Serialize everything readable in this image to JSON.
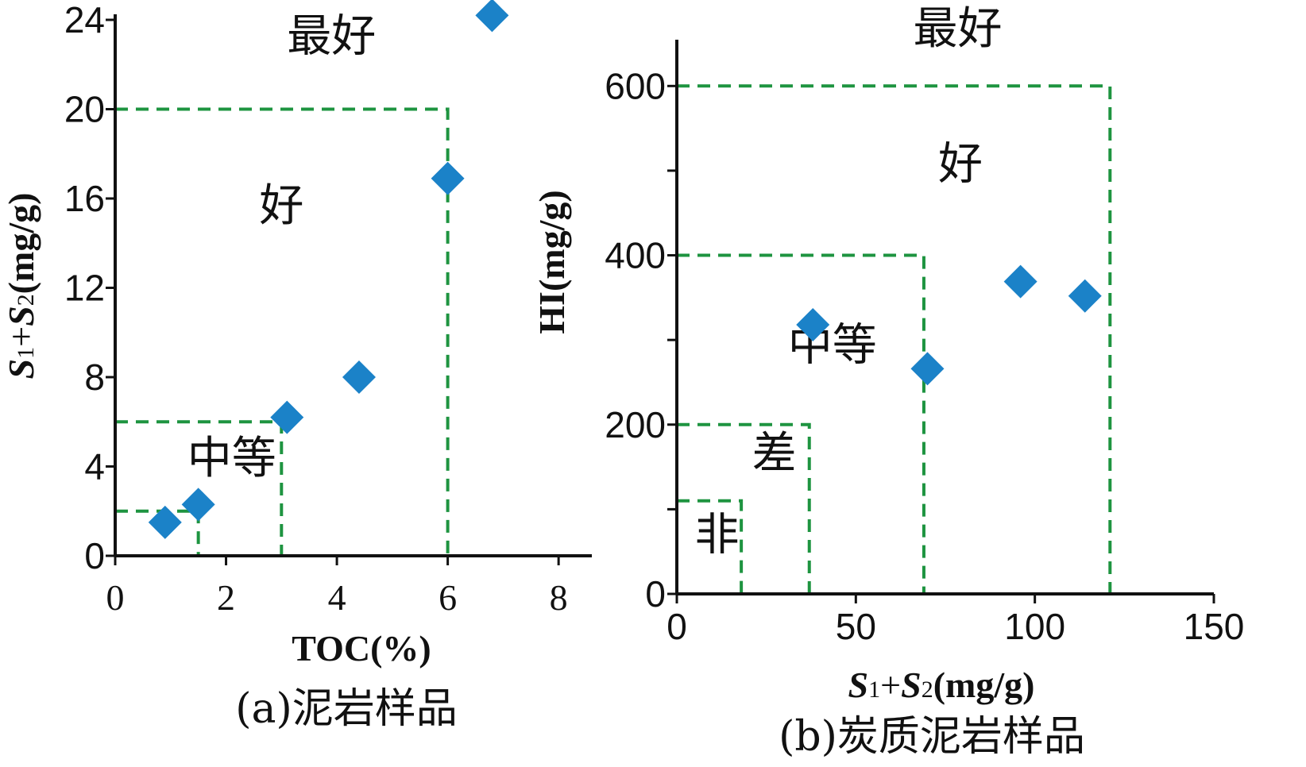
{
  "chart_data": [
    {
      "type": "scatter",
      "panel": "a",
      "caption": "(a)泥岩样品",
      "xlabel": "TOC(%)",
      "ylabel": {
        "s1": "S",
        "sub1": "1",
        "plus": "+",
        "s2": "S",
        "sub2": "2",
        "unit": "(mg/g)"
      },
      "xlim": [
        0,
        8.6
      ],
      "ylim": [
        0,
        24
      ],
      "x_ticks": [
        0,
        2,
        4,
        6,
        8
      ],
      "y_ticks": [
        0,
        4,
        8,
        12,
        16,
        20,
        24
      ],
      "grid": false,
      "points": [
        {
          "x": 0.9,
          "y": 1.5
        },
        {
          "x": 1.5,
          "y": 2.3
        },
        {
          "x": 3.1,
          "y": 6.2
        },
        {
          "x": 4.4,
          "y": 8.0
        },
        {
          "x": 6.0,
          "y": 16.9
        },
        {
          "x": 6.8,
          "y": 24.2
        }
      ],
      "regions": [
        {
          "x_max": 1.5,
          "y_max": 2
        },
        {
          "x_max": 3,
          "y_max": 6,
          "label": "中等",
          "label_x": 1.3,
          "label_y": 3.7
        },
        {
          "x_max": 6,
          "y_max": 20,
          "label": "好",
          "label_x": 2.6,
          "label_y": 15.0
        },
        {
          "label": "最好",
          "label_x": 3.1,
          "label_y": 22.6
        }
      ],
      "color": "#1b82c8",
      "boundary_color": "#1e9440"
    },
    {
      "type": "scatter",
      "panel": "b",
      "caption": "(b)炭质泥岩样品",
      "xlabel": {
        "s1": "S",
        "sub1": "1",
        "plus": "+",
        "s2": "S",
        "sub2": "2",
        "unit": "(mg/g)"
      },
      "ylabel": "HI(mg/g)",
      "xlim": [
        0,
        150
      ],
      "ylim": [
        0,
        650
      ],
      "x_ticks": [
        0,
        50,
        100,
        150
      ],
      "y_ticks": [
        0,
        100,
        200,
        300,
        400,
        500,
        600
      ],
      "y_tick_labels": [
        "0",
        "",
        "200",
        "",
        "400",
        "",
        "600"
      ],
      "grid": false,
      "points": [
        {
          "x": 38,
          "y": 318
        },
        {
          "x": 70,
          "y": 266
        },
        {
          "x": 96,
          "y": 369
        },
        {
          "x": 114,
          "y": 352
        }
      ],
      "regions": [
        {
          "x_max": 18,
          "y_max": 110,
          "label": "非",
          "label_x": 5,
          "label_y": 52
        },
        {
          "x_max": 37,
          "y_max": 200,
          "label": "差",
          "label_x": 21,
          "label_y": 148
        },
        {
          "x_max": 69,
          "y_max": 400,
          "label": "中等",
          "label_x": 31,
          "label_y": 276
        },
        {
          "x_max": 121,
          "y_max": 600,
          "label": "好",
          "label_x": 73,
          "label_y": 490
        },
        {
          "label": "最好",
          "label_x": 66,
          "label_y": 650
        }
      ],
      "color": "#1b82c8",
      "boundary_color": "#1e9440"
    }
  ]
}
